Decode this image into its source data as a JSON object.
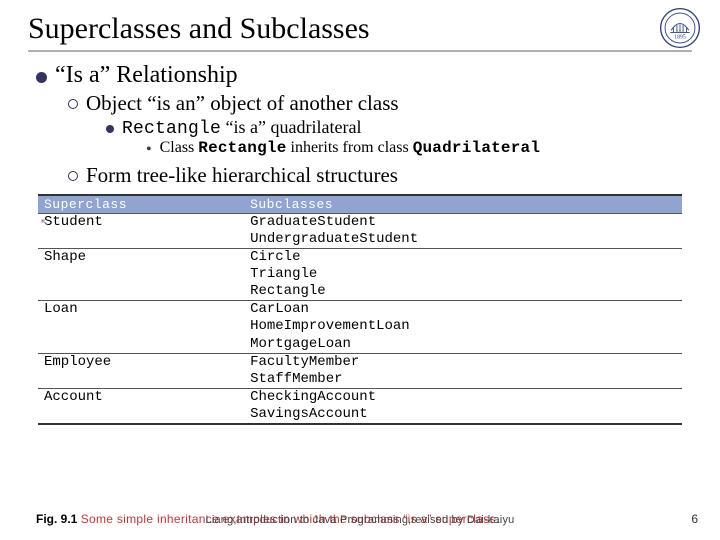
{
  "title": "Superclasses and Subclasses",
  "logo": {
    "year": "1895",
    "stroke": "#2a3a8a"
  },
  "bullets": {
    "l1": "“Is a” Relationship",
    "l2a_prefix": "Object ",
    "l2a_rest": "“is an” object of another class",
    "l3_prefix": "Rectangle",
    "l3_rest": " “is a” quadrilateral",
    "l4_pre": "Class ",
    "l4_b1": "Rectangle",
    "l4_mid": " inherits from class ",
    "l4_b2": "Quadrilateral",
    "l2b": "Form tree-like hierarchical structures"
  },
  "table": {
    "header_left": "Superclass",
    "header_right": "Subclasses",
    "rows": [
      {
        "left": "Student",
        "right": "GraduateStudent\nUndergraduateStudent"
      },
      {
        "left": "Shape",
        "right": "Circle\nTriangle\nRectangle"
      },
      {
        "left": "Loan",
        "right": "CarLoan\nHomeImprovementLoan\nMortgageLoan"
      },
      {
        "left": "Employee",
        "right": "FacultyMember\nStaffMember"
      },
      {
        "left": "Account",
        "right": "CheckingAccount\nSavingsAccount"
      }
    ],
    "side_marks": [
      "",
      "",
      ""
    ]
  },
  "caption": {
    "fignum": "Fig. 9.1",
    "text": "Some simple inheritance examples in which the subclass “is a” superclass."
  },
  "footer": "Liang,Introduction to Java Programming,revised by Dai-kaiyu",
  "page": "6"
}
